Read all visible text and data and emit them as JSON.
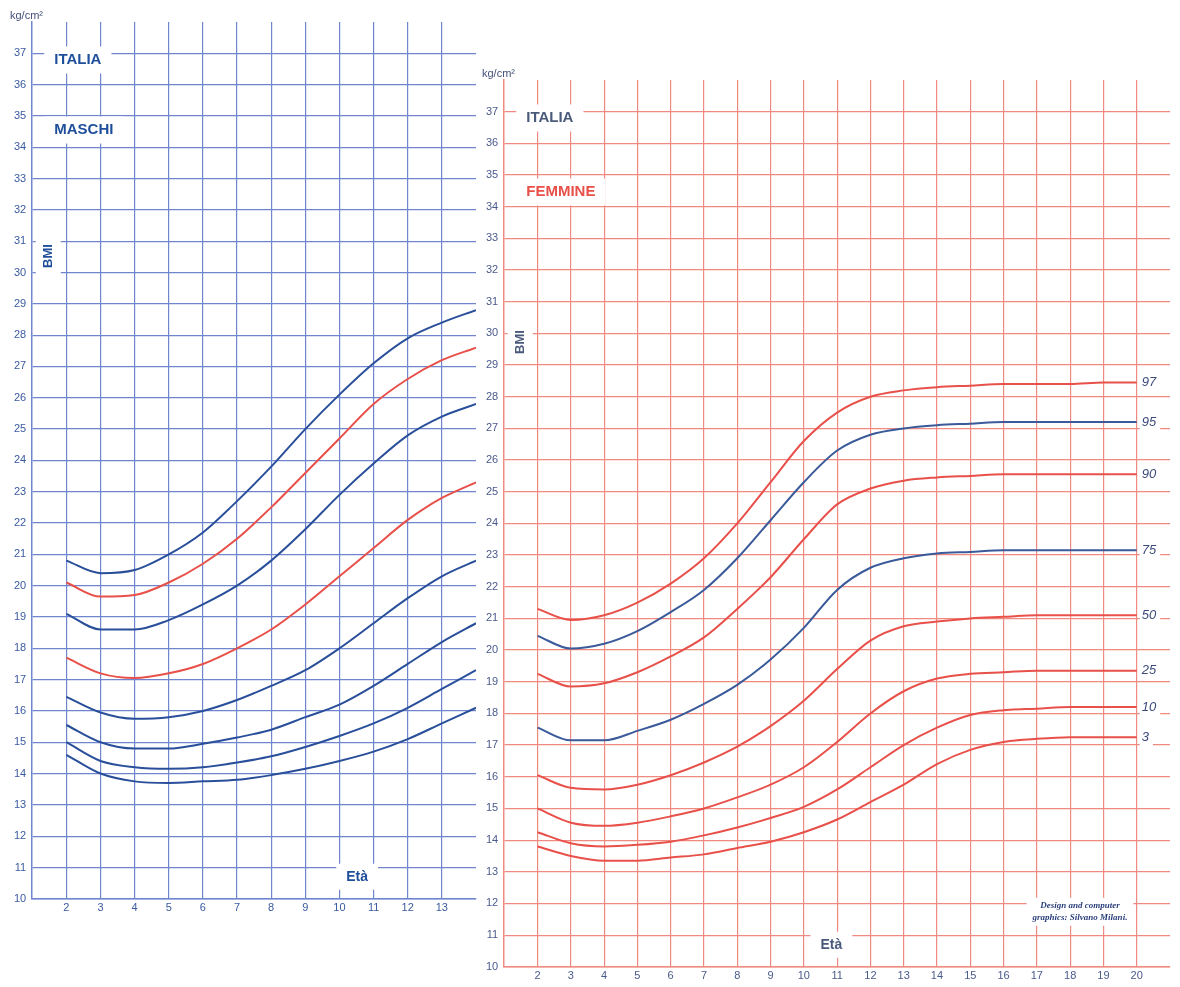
{
  "chart_data": [
    {
      "type": "line",
      "title": "ITALIA",
      "subtitle": "MASCHI",
      "xlabel": "Età",
      "ylabel": "BMI",
      "annotations": [
        "kg/cm²"
      ],
      "x": [
        2,
        3,
        4,
        5,
        6,
        7,
        8,
        9,
        10,
        11,
        12,
        13,
        14
      ],
      "series": [
        {
          "color": "#2a4f9a",
          "values": [
            20.8,
            20.4,
            20.5,
            21.0,
            21.7,
            22.7,
            23.8,
            25.0,
            26.1,
            27.1,
            27.9,
            28.4,
            28.8
          ]
        },
        {
          "color": "#e8504a",
          "values": [
            20.1,
            19.65,
            19.7,
            20.1,
            20.7,
            21.5,
            22.5,
            23.6,
            24.7,
            25.8,
            26.6,
            27.2,
            27.6
          ]
        },
        {
          "color": "#2a4f9a",
          "values": [
            19.1,
            18.6,
            18.6,
            18.9,
            19.4,
            20.0,
            20.8,
            21.8,
            22.9,
            23.9,
            24.8,
            25.4,
            25.8
          ]
        },
        {
          "color": "#e8504a",
          "values": [
            17.7,
            17.2,
            17.05,
            17.2,
            17.5,
            18.0,
            18.6,
            19.4,
            20.3,
            21.2,
            22.1,
            22.8,
            23.3
          ]
        },
        {
          "color": "#2a4f9a",
          "values": [
            16.45,
            15.95,
            15.75,
            15.8,
            16.0,
            16.35,
            16.8,
            17.3,
            18.0,
            18.8,
            19.6,
            20.3,
            20.8
          ]
        },
        {
          "color": "#2a4f9a",
          "values": [
            15.55,
            15.0,
            14.8,
            14.8,
            14.95,
            15.15,
            15.4,
            15.8,
            16.2,
            16.8,
            17.5,
            18.2,
            18.8
          ]
        },
        {
          "color": "#2a4f9a",
          "values": [
            15.0,
            14.4,
            14.2,
            14.15,
            14.2,
            14.35,
            14.55,
            14.85,
            15.2,
            15.6,
            16.1,
            16.7,
            17.3
          ]
        },
        {
          "color": "#2a4f9a",
          "values": [
            14.6,
            14.0,
            13.75,
            13.7,
            13.75,
            13.8,
            13.95,
            14.15,
            14.4,
            14.7,
            15.1,
            15.6,
            16.1
          ]
        }
      ],
      "xlim": [
        1,
        14
      ],
      "xticks": [
        2,
        3,
        4,
        5,
        6,
        7,
        8,
        9,
        10,
        11,
        12,
        13
      ],
      "ylim": [
        10,
        38
      ],
      "yticks": [
        10,
        11,
        12,
        13,
        14,
        15,
        16,
        17,
        18,
        19,
        20,
        21,
        22,
        23,
        24,
        25,
        26,
        27,
        28,
        29,
        30,
        31,
        32,
        33,
        34,
        35,
        36,
        37
      ],
      "grid": true,
      "legend": false,
      "marker": "none",
      "line_style": "solid"
    },
    {
      "type": "line",
      "title": "ITALIA",
      "subtitle": "FEMMINE",
      "xlabel": "Età",
      "ylabel": "BMI",
      "annotations": [
        "kg/cm²",
        "Design and computer graphics: Silvano Milani."
      ],
      "x": [
        2,
        3,
        4,
        5,
        6,
        7,
        8,
        9,
        10,
        11,
        12,
        13,
        14,
        15,
        16,
        17,
        18,
        19,
        20
      ],
      "series": [
        {
          "name": "97",
          "color": "#e8504a",
          "values": [
            21.3,
            20.95,
            21.1,
            21.5,
            22.1,
            22.9,
            24.0,
            25.3,
            26.6,
            27.5,
            28.0,
            28.2,
            28.3,
            28.35,
            28.4,
            28.4,
            28.4,
            28.45,
            28.45
          ]
        },
        {
          "name": "95",
          "color": "#3a5a9a",
          "values": [
            20.45,
            20.05,
            20.2,
            20.6,
            21.2,
            21.9,
            22.9,
            24.1,
            25.3,
            26.3,
            26.8,
            27.0,
            27.1,
            27.15,
            27.2,
            27.2,
            27.2,
            27.2,
            27.2
          ]
        },
        {
          "name": "90",
          "color": "#e8504a",
          "values": [
            19.25,
            18.85,
            18.95,
            19.3,
            19.8,
            20.4,
            21.3,
            22.3,
            23.5,
            24.6,
            25.1,
            25.35,
            25.45,
            25.5,
            25.55,
            25.55,
            25.55,
            25.55,
            25.55
          ]
        },
        {
          "name": "75",
          "color": "#3a5a9a",
          "values": [
            17.55,
            17.15,
            17.15,
            17.45,
            17.8,
            18.3,
            18.9,
            19.7,
            20.7,
            21.9,
            22.6,
            22.9,
            23.05,
            23.1,
            23.15,
            23.15,
            23.15,
            23.15,
            23.15
          ]
        },
        {
          "name": "50",
          "color": "#e8504a",
          "values": [
            16.05,
            15.65,
            15.6,
            15.75,
            16.05,
            16.45,
            16.95,
            17.6,
            18.4,
            19.4,
            20.3,
            20.75,
            20.9,
            21.0,
            21.05,
            21.1,
            21.1,
            21.1,
            21.1
          ]
        },
        {
          "name": "25",
          "color": "#e8504a",
          "values": [
            15.0,
            14.55,
            14.45,
            14.55,
            14.75,
            15.0,
            15.35,
            15.75,
            16.3,
            17.1,
            18.0,
            18.7,
            19.1,
            19.25,
            19.3,
            19.35,
            19.35,
            19.35,
            19.35
          ]
        },
        {
          "name": "10",
          "color": "#e8504a",
          "values": [
            14.25,
            13.9,
            13.8,
            13.85,
            13.95,
            14.15,
            14.4,
            14.7,
            15.05,
            15.6,
            16.3,
            17.0,
            17.55,
            17.95,
            18.1,
            18.15,
            18.2,
            18.2,
            18.2
          ]
        },
        {
          "name": "3",
          "color": "#e8504a",
          "values": [
            13.8,
            13.5,
            13.35,
            13.35,
            13.45,
            13.55,
            13.75,
            13.95,
            14.25,
            14.65,
            15.2,
            15.75,
            16.4,
            16.85,
            17.1,
            17.2,
            17.25,
            17.25,
            17.25
          ]
        }
      ],
      "xlim": [
        1,
        21
      ],
      "xticks": [
        2,
        3,
        4,
        5,
        6,
        7,
        8,
        9,
        10,
        11,
        12,
        13,
        14,
        15,
        16,
        17,
        18,
        19,
        20
      ],
      "ylim": [
        10,
        38
      ],
      "yticks": [
        10,
        11,
        12,
        13,
        14,
        15,
        16,
        17,
        18,
        19,
        20,
        21,
        22,
        23,
        24,
        25,
        26,
        27,
        28,
        29,
        30,
        31,
        32,
        33,
        34,
        35,
        36,
        37
      ],
      "grid": true,
      "legend": false,
      "marker": "none",
      "line_style": "solid"
    }
  ]
}
